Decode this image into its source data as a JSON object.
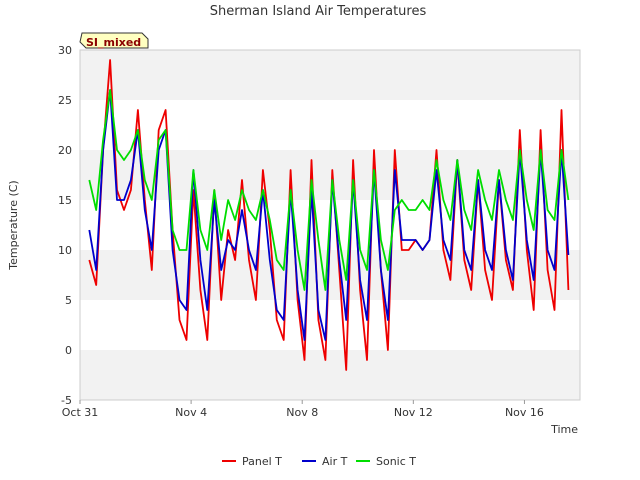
{
  "chart_data": {
    "type": "line",
    "title": "Sherman Island Air Temperatures",
    "xlabel": "Time",
    "ylabel": "Temperature (C)",
    "badge": "SI_mixed",
    "ylim": [
      -5,
      30
    ],
    "yticks": [
      -5,
      0,
      5,
      10,
      15,
      20,
      25,
      30
    ],
    "xlim": [
      "2023-10-31",
      "2023-11-18"
    ],
    "xticks": [
      {
        "label": "Oct 31",
        "x": "2023-10-31"
      },
      {
        "label": "Nov 4",
        "x": "2023-11-04"
      },
      {
        "label": "Nov 8",
        "x": "2023-11-08"
      },
      {
        "label": "Nov 12",
        "x": "2023-11-12"
      },
      {
        "label": "Nov 16",
        "x": "2023-11-16"
      }
    ],
    "grid": "alternating horizontal bands",
    "legend": "bottom-center",
    "x": [
      "2023-10-31 08:00",
      "2023-10-31 14:00",
      "2023-10-31 20:00",
      "2023-11-01 02:00",
      "2023-11-01 08:00",
      "2023-11-01 14:00",
      "2023-11-01 20:00",
      "2023-11-02 02:00",
      "2023-11-02 08:00",
      "2023-11-02 14:00",
      "2023-11-02 20:00",
      "2023-11-03 02:00",
      "2023-11-03 08:00",
      "2023-11-03 14:00",
      "2023-11-03 20:00",
      "2023-11-04 02:00",
      "2023-11-04 08:00",
      "2023-11-04 14:00",
      "2023-11-04 20:00",
      "2023-11-05 02:00",
      "2023-11-05 08:00",
      "2023-11-05 14:00",
      "2023-11-05 20:00",
      "2023-11-06 02:00",
      "2023-11-06 08:00",
      "2023-11-06 14:00",
      "2023-11-06 20:00",
      "2023-11-07 02:00",
      "2023-11-07 08:00",
      "2023-11-07 14:00",
      "2023-11-07 20:00",
      "2023-11-08 02:00",
      "2023-11-08 08:00",
      "2023-11-08 14:00",
      "2023-11-08 20:00",
      "2023-11-09 02:00",
      "2023-11-09 08:00",
      "2023-11-09 14:00",
      "2023-11-09 20:00",
      "2023-11-10 02:00",
      "2023-11-10 08:00",
      "2023-11-10 14:00",
      "2023-11-10 20:00",
      "2023-11-11 02:00",
      "2023-11-11 08:00",
      "2023-11-11 14:00",
      "2023-11-11 20:00",
      "2023-11-12 02:00",
      "2023-11-12 08:00",
      "2023-11-12 14:00",
      "2023-11-12 20:00",
      "2023-11-13 02:00",
      "2023-11-13 08:00",
      "2023-11-13 14:00",
      "2023-11-13 20:00",
      "2023-11-14 02:00",
      "2023-11-14 08:00",
      "2023-11-14 14:00",
      "2023-11-14 20:00",
      "2023-11-15 02:00",
      "2023-11-15 08:00",
      "2023-11-15 14:00",
      "2023-11-15 20:00",
      "2023-11-16 02:00",
      "2023-11-16 08:00",
      "2023-11-16 14:00",
      "2023-11-16 20:00",
      "2023-11-17 02:00",
      "2023-11-17 08:00",
      "2023-11-17 14:00"
    ],
    "series": [
      {
        "name": "Panel T",
        "color": "#ee0000",
        "values": [
          9,
          6.5,
          20,
          29,
          16,
          14,
          16,
          24,
          15,
          8,
          22,
          24,
          12,
          3,
          1,
          16,
          6,
          1,
          16,
          5,
          12,
          9,
          17,
          9,
          5,
          18,
          12,
          3,
          1,
          18,
          5,
          -1,
          19,
          3,
          -1,
          18,
          8,
          -2,
          19,
          6,
          -1,
          20,
          8,
          0,
          20,
          10,
          10,
          11,
          10,
          11,
          20,
          10,
          7,
          19,
          9,
          6,
          17,
          8,
          5,
          17,
          9,
          6,
          22,
          10,
          4,
          22,
          8,
          4,
          24,
          6
        ]
      },
      {
        "name": "Air T",
        "color": "#0000cc",
        "values": [
          12,
          8,
          20,
          26,
          15,
          15,
          17,
          22,
          14,
          10,
          20,
          22,
          10,
          5,
          4,
          18,
          9,
          4,
          15,
          8,
          11,
          10,
          14,
          10,
          8,
          16,
          9,
          4,
          3,
          16,
          6,
          1,
          16,
          4,
          1,
          17,
          9,
          3,
          17,
          7,
          3,
          18,
          8,
          3,
          18,
          11,
          11,
          11,
          10,
          11,
          18,
          11,
          9,
          19,
          10,
          8,
          17,
          10,
          8,
          17,
          10,
          7,
          20,
          11,
          7,
          20,
          10,
          8,
          20,
          9.5
        ]
      },
      {
        "name": "Sonic T",
        "color": "#00dd00",
        "values": [
          17,
          14,
          21,
          26,
          20,
          19,
          20,
          22,
          17,
          15,
          21,
          22,
          12,
          10,
          10,
          18,
          12,
          10,
          16,
          11,
          15,
          13,
          16,
          14,
          13,
          16,
          13,
          9,
          8,
          16,
          10,
          6,
          17,
          11,
          6,
          17,
          11,
          7,
          17,
          10,
          8,
          18,
          11,
          8,
          14,
          15,
          14,
          14,
          15,
          14,
          19,
          15,
          13,
          19,
          14,
          12,
          18,
          15,
          13,
          18,
          15,
          13,
          20,
          15,
          12,
          20,
          14,
          13,
          20,
          15
        ]
      }
    ]
  }
}
